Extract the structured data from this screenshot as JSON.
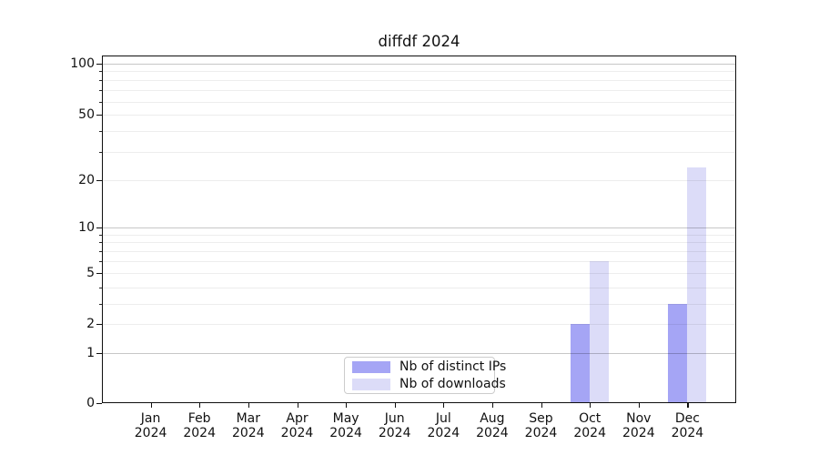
{
  "title": "diffdf 2024",
  "chart_data": {
    "type": "bar",
    "title": "diffdf 2024",
    "categories": [
      "Jan 2024",
      "Feb 2024",
      "Mar 2024",
      "Apr 2024",
      "May 2024",
      "Jun 2024",
      "Jul 2024",
      "Aug 2024",
      "Sep 2024",
      "Oct 2024",
      "Nov 2024",
      "Dec 2024"
    ],
    "x_tick_line1": [
      "Jan",
      "Feb",
      "Mar",
      "Apr",
      "May",
      "Jun",
      "Jul",
      "Aug",
      "Sep",
      "Oct",
      "Nov",
      "Dec"
    ],
    "x_tick_line2": [
      "2024",
      "2024",
      "2024",
      "2024",
      "2024",
      "2024",
      "2024",
      "2024",
      "2024",
      "2024",
      "2024",
      "2024"
    ],
    "series": [
      {
        "name": "Nb of distinct IPs",
        "color": "#a5a5f5",
        "values": [
          0,
          0,
          0,
          0,
          0,
          0,
          0,
          0,
          0,
          2,
          0,
          3
        ]
      },
      {
        "name": "Nb of downloads",
        "color": "#dcdcf8",
        "values": [
          0,
          0,
          0,
          0,
          0,
          0,
          0,
          0,
          0,
          6,
          0,
          24
        ]
      }
    ],
    "xlabel": "",
    "ylabel": "",
    "y_ticks": [
      0,
      1,
      2,
      5,
      10,
      20,
      50,
      100
    ],
    "ylim": [
      0,
      110
    ],
    "yscale": "symlog",
    "grid": true,
    "legend_position": "lower center",
    "colors": {
      "background": "#ffffff",
      "spine": "#0f0f0f",
      "grid_major": "#c7c7c7",
      "grid_minor": "#ededed",
      "text": "#111111",
      "legend_border": "#cccccc"
    }
  }
}
